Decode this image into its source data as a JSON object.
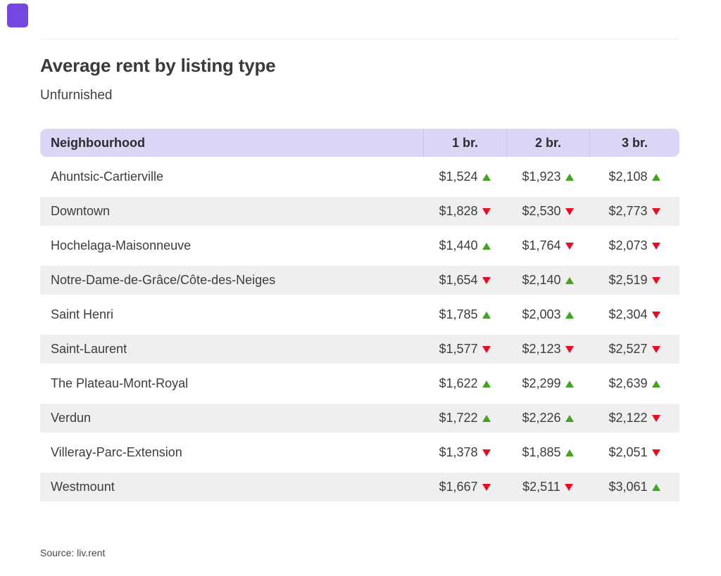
{
  "brand": {
    "mark_color": "#7448e0"
  },
  "header": {
    "title": "Average rent by listing type",
    "subtitle": "Unfurnished"
  },
  "table": {
    "columns": [
      "Neighbourhood",
      "1 br.",
      "2 br.",
      "3 br."
    ],
    "rows": [
      {
        "name": "Ahuntsic-Cartierville",
        "cells": [
          {
            "amount": "$1,524",
            "trend": "up"
          },
          {
            "amount": "$1,923",
            "trend": "up"
          },
          {
            "amount": "$2,108",
            "trend": "up"
          }
        ]
      },
      {
        "name": "Downtown",
        "cells": [
          {
            "amount": "$1,828",
            "trend": "down"
          },
          {
            "amount": "$2,530",
            "trend": "down"
          },
          {
            "amount": "$2,773",
            "trend": "down"
          }
        ]
      },
      {
        "name": "Hochelaga-Maisonneuve",
        "cells": [
          {
            "amount": "$1,440",
            "trend": "up"
          },
          {
            "amount": "$1,764",
            "trend": "down"
          },
          {
            "amount": "$2,073",
            "trend": "down"
          }
        ]
      },
      {
        "name": "Notre-Dame-de-Grâce/Côte-des-Neiges",
        "cells": [
          {
            "amount": "$1,654",
            "trend": "down"
          },
          {
            "amount": "$2,140",
            "trend": "up"
          },
          {
            "amount": "$2,519",
            "trend": "down"
          }
        ]
      },
      {
        "name": "Saint Henri",
        "cells": [
          {
            "amount": "$1,785",
            "trend": "up"
          },
          {
            "amount": "$2,003",
            "trend": "up"
          },
          {
            "amount": "$2,304",
            "trend": "down"
          }
        ]
      },
      {
        "name": "Saint-Laurent",
        "cells": [
          {
            "amount": "$1,577",
            "trend": "down"
          },
          {
            "amount": "$2,123",
            "trend": "down"
          },
          {
            "amount": "$2,527",
            "trend": "down"
          }
        ]
      },
      {
        "name": "The Plateau-Mont-Royal",
        "cells": [
          {
            "amount": "$1,622",
            "trend": "up"
          },
          {
            "amount": "$2,299",
            "trend": "up"
          },
          {
            "amount": "$2,639",
            "trend": "up"
          }
        ]
      },
      {
        "name": "Verdun",
        "cells": [
          {
            "amount": "$1,722",
            "trend": "up"
          },
          {
            "amount": "$2,226",
            "trend": "up"
          },
          {
            "amount": "$2,122",
            "trend": "down"
          }
        ]
      },
      {
        "name": "Villeray-Parc-Extension",
        "cells": [
          {
            "amount": "$1,378",
            "trend": "down"
          },
          {
            "amount": "$1,885",
            "trend": "up"
          },
          {
            "amount": "$2,051",
            "trend": "down"
          }
        ]
      },
      {
        "name": "Westmount",
        "cells": [
          {
            "amount": "$1,667",
            "trend": "down"
          },
          {
            "amount": "$2,511",
            "trend": "down"
          },
          {
            "amount": "$3,061",
            "trend": "up"
          }
        ]
      }
    ]
  },
  "footer": {
    "source": "Source: liv.rent"
  },
  "colors": {
    "header_bg": "#dcd6f6",
    "header_divider": "#cbc1ec",
    "row_stripe": "#efefef",
    "trend_up": "#43a421",
    "trend_down": "#ea0c1e"
  },
  "chart_data": {
    "type": "table",
    "title": "Average rent by listing type",
    "subtitle": "Unfurnished",
    "categories": [
      "Ahuntsic-Cartierville",
      "Downtown",
      "Hochelaga-Maisonneuve",
      "Notre-Dame-de-Grâce/Côte-des-Neiges",
      "Saint Henri",
      "Saint-Laurent",
      "The Plateau-Mont-Royal",
      "Verdun",
      "Villeray-Parc-Extension",
      "Westmount"
    ],
    "series": [
      {
        "name": "1 br.",
        "values": [
          1524,
          1828,
          1440,
          1654,
          1785,
          1577,
          1622,
          1722,
          1378,
          1667
        ],
        "trends": [
          "up",
          "down",
          "up",
          "down",
          "up",
          "down",
          "up",
          "up",
          "down",
          "down"
        ]
      },
      {
        "name": "2 br.",
        "values": [
          1923,
          2530,
          1764,
          2140,
          2003,
          2123,
          2299,
          2226,
          1885,
          2511
        ],
        "trends": [
          "up",
          "down",
          "down",
          "up",
          "up",
          "down",
          "up",
          "up",
          "up",
          "down"
        ]
      },
      {
        "name": "3 br.",
        "values": [
          2108,
          2773,
          2073,
          2519,
          2304,
          2527,
          2639,
          2122,
          2051,
          3061
        ],
        "trends": [
          "up",
          "down",
          "down",
          "down",
          "down",
          "down",
          "up",
          "down",
          "down",
          "up"
        ]
      }
    ],
    "source": "Source: liv.rent"
  }
}
